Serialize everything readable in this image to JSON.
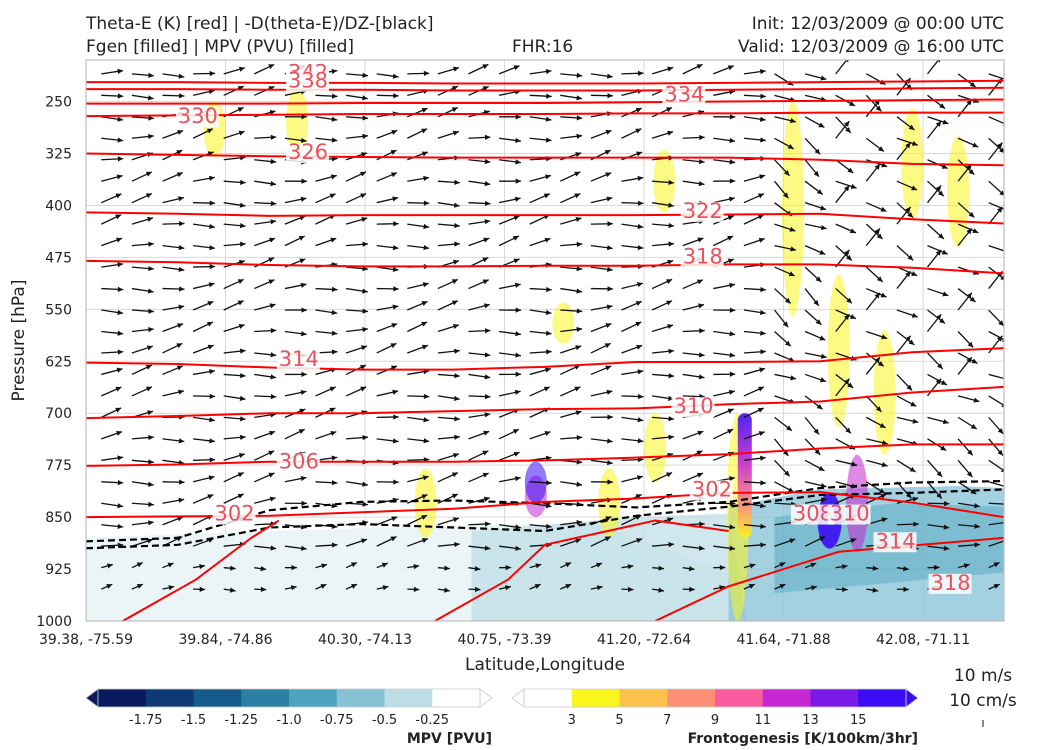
{
  "header": {
    "title_left_1": "Theta-E (K) [red] | -D(theta-E)/DZ-[black]",
    "title_left_2": "Fgen [filled] | MPV (PVU) [filled]",
    "fhr": "FHR:16",
    "init": "Init: 12/03/2009 @ 00:00 UTC",
    "valid": "Valid: 12/03/2009 @ 16:00 UTC"
  },
  "chart_data": {
    "type": "cross-section",
    "xlabel": "Latitude,Longitude",
    "ylabel": "Pressure [hPa]",
    "x_ticks": [
      "39.38, -75.59",
      "39.84, -74.86",
      "40.30, -74.13",
      "40.75, -73.39",
      "41.20, -72.64",
      "41.64, -71.88",
      "42.08, -71.11"
    ],
    "y_ticks": [
      "250",
      "325",
      "400",
      "475",
      "550",
      "625",
      "700",
      "775",
      "850",
      "925",
      "1000"
    ],
    "ylim": [
      1000,
      190
    ],
    "grid": true,
    "theta_e_contours": [
      {
        "label": "342",
        "values": [
          222,
          222,
          223,
          223,
          224,
          224,
          224,
          223,
          222,
          221,
          220
        ]
      },
      {
        "label": "338",
        "values": [
          232,
          232,
          233,
          233,
          234,
          234,
          234,
          233,
          232,
          231,
          230
        ]
      },
      {
        "label": "334",
        "values": [
          253,
          253,
          253,
          252,
          252,
          252,
          251,
          250,
          249,
          248,
          247
        ]
      },
      {
        "label": "330",
        "values": [
          271,
          270,
          269,
          268,
          268,
          268,
          267,
          267,
          266,
          266,
          266
        ]
      },
      {
        "label": "326",
        "values": [
          325,
          327,
          329,
          330,
          331,
          331,
          331,
          331,
          334,
          340,
          342
        ]
      },
      {
        "label": "322",
        "values": [
          410,
          412,
          415,
          414,
          414,
          414,
          414,
          413,
          412,
          420,
          426
        ]
      },
      {
        "label": "318",
        "values": [
          480,
          482,
          486,
          488,
          488,
          487,
          487,
          485,
          485,
          490,
          498
        ]
      },
      {
        "label": "314",
        "values": [
          627,
          629,
          634,
          637,
          637,
          633,
          626,
          626,
          625,
          612,
          606
        ]
      },
      {
        "label": "310",
        "values": [
          707,
          704,
          700,
          700,
          697,
          694,
          693,
          687,
          683,
          670,
          662
        ]
      },
      {
        "label": "306",
        "values": [
          776,
          774,
          770,
          770,
          770,
          768,
          764,
          759,
          751,
          745,
          745
        ]
      },
      {
        "label": "302",
        "values": [
          850,
          849,
          848,
          843,
          838,
          828,
          823,
          815,
          814,
          829,
          850
        ]
      }
    ],
    "contour_labels": [
      {
        "text": "342",
        "x": 0.22,
        "p": 218
      },
      {
        "text": "338",
        "x": 0.22,
        "p": 230
      },
      {
        "text": "334",
        "x": 0.63,
        "p": 250
      },
      {
        "text": "330",
        "x": 0.1,
        "p": 281
      },
      {
        "text": "326",
        "x": 0.22,
        "p": 333
      },
      {
        "text": "322",
        "x": 0.65,
        "p": 418
      },
      {
        "text": "318",
        "x": 0.65,
        "p": 484
      },
      {
        "text": "314",
        "x": 0.21,
        "p": 632
      },
      {
        "text": "310",
        "x": 0.64,
        "p": 700
      },
      {
        "text": "306",
        "x": 0.21,
        "p": 780
      },
      {
        "text": "302",
        "x": 0.14,
        "p": 855
      },
      {
        "text": "302",
        "x": 0.66,
        "p": 820
      },
      {
        "text": "308",
        "x": 0.77,
        "p": 855
      },
      {
        "text": "310",
        "x": 0.81,
        "p": 855
      },
      {
        "text": "314",
        "x": 0.86,
        "p": 895
      },
      {
        "text": "318",
        "x": 0.92,
        "p": 955
      }
    ],
    "stability_contours": [
      {
        "values": [
          895,
          890,
          865,
          860,
          865,
          870,
          848,
          835,
          818,
          815,
          810
        ]
      },
      {
        "values": [
          885,
          880,
          840,
          828,
          826,
          830,
          836,
          828,
          808,
          800,
          798
        ]
      }
    ],
    "vector_key": {
      "lines": [
        "10 m/s",
        "10 cm/s"
      ]
    },
    "mpv_colorbar": {
      "label": "MPV [PVU]",
      "ticks": [
        "-1.75",
        "-1.5",
        "-1.25",
        "-1.0",
        "-0.75",
        "-0.5",
        "-0.25"
      ],
      "colors": [
        "#08195e",
        "#0d3a75",
        "#165b8a",
        "#2a7fa3",
        "#4ea3c1",
        "#86c1d6",
        "#bcdde6",
        "#ffffff"
      ]
    },
    "fgen_colorbar": {
      "label": "Frontogenesis [K/100km/3hr]",
      "ticks": [
        "3",
        "5",
        "7",
        "9",
        "11",
        "13",
        "15"
      ],
      "colors": [
        "#ffffff",
        "#fbf51e",
        "#fcc14a",
        "#fc8f76",
        "#f95b9e",
        "#c528d3",
        "#7a1ae8",
        "#3a0cf5"
      ]
    },
    "colors": {
      "theta_e": "#ff0000",
      "stability": "#000000",
      "grid": "#d9d9d9"
    }
  }
}
